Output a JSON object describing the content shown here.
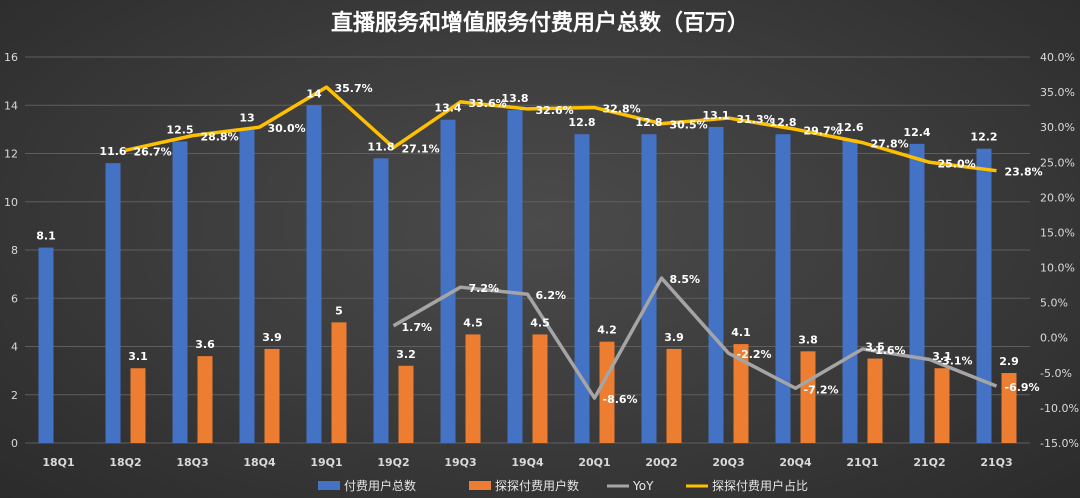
{
  "chart_data": {
    "type": "bar",
    "title": "直播服务和增值服务付费用户总数（百万）",
    "categories": [
      "18Q1",
      "18Q2",
      "18Q3",
      "18Q4",
      "19Q1",
      "19Q2",
      "19Q3",
      "19Q4",
      "20Q1",
      "20Q2",
      "20Q3",
      "20Q4",
      "21Q1",
      "21Q2",
      "21Q3"
    ],
    "left_axis": {
      "ylim": [
        0,
        16
      ],
      "ticks": [
        "0",
        "2",
        "4",
        "6",
        "8",
        "10",
        "12",
        "14",
        "16"
      ],
      "tick_values": [
        0,
        2,
        4,
        6,
        8,
        10,
        12,
        14,
        16
      ]
    },
    "right_axis": {
      "ylim": [
        -15,
        40
      ],
      "ticks": [
        "-15.0%",
        "-10.0%",
        "-5.0%",
        "0.0%",
        "5.0%",
        "10.0%",
        "15.0%",
        "20.0%",
        "25.0%",
        "30.0%",
        "35.0%",
        "40.0%"
      ],
      "tick_values": [
        -15,
        -10,
        -5,
        0,
        5,
        10,
        15,
        20,
        25,
        30,
        35,
        40
      ]
    },
    "series": [
      {
        "name": "付费用户总数",
        "kind": "bar",
        "axis": "left",
        "color": "#4472c4",
        "values": [
          8.1,
          11.6,
          12.5,
          13,
          14,
          11.8,
          13.4,
          13.8,
          12.8,
          12.8,
          13.1,
          12.8,
          12.6,
          12.4,
          12.2
        ],
        "labels": [
          "8.1",
          "11.6",
          "12.5",
          "13",
          "14",
          "11.8",
          "13.4",
          "13.8",
          "12.8",
          "12.8",
          "13.1",
          "12.8",
          "12.6",
          "12.4",
          "12.2"
        ]
      },
      {
        "name": "探探付费用户数",
        "kind": "bar",
        "axis": "left",
        "color": "#ed7d31",
        "values": [
          null,
          3.1,
          3.6,
          3.9,
          5,
          3.2,
          4.5,
          4.5,
          4.2,
          3.9,
          4.1,
          3.8,
          3.5,
          3.1,
          2.9
        ],
        "labels": [
          "",
          "3.1",
          "3.6",
          "3.9",
          "5",
          "3.2",
          "4.5",
          "4.5",
          "4.2",
          "3.9",
          "4.1",
          "3.8",
          "3.5",
          "3.1",
          "2.9"
        ]
      },
      {
        "name": "YoY",
        "kind": "line",
        "axis": "right",
        "color": "#a5a5a5",
        "values": [
          null,
          null,
          null,
          null,
          null,
          1.7,
          7.2,
          6.2,
          -8.6,
          8.5,
          -2.2,
          -7.2,
          -1.6,
          -3.1,
          -6.9
        ],
        "labels": [
          "",
          "",
          "",
          "",
          "",
          "1.7%",
          "7.2%",
          "6.2%",
          "-8.6%",
          "8.5%",
          "-2.2%",
          "-7.2%",
          "-1.6%",
          "-3.1%",
          "-6.9%"
        ]
      },
      {
        "name": "探探付费用户占比",
        "kind": "line",
        "axis": "right",
        "color": "#ffc000",
        "values": [
          null,
          26.7,
          28.8,
          30.0,
          35.7,
          27.1,
          33.6,
          32.6,
          32.8,
          30.5,
          31.3,
          29.7,
          27.8,
          25.0,
          23.8
        ],
        "labels": [
          "",
          "26.7%",
          "28.8%",
          "30.0%",
          "35.7%",
          "27.1%",
          "33.6%",
          "32.6%",
          "32.8%",
          "30.5%",
          "31.3%",
          "29.7%",
          "27.8%",
          "25.0%",
          "23.8%"
        ]
      }
    ],
    "legend_position": "bottom-center",
    "grid": true
  }
}
